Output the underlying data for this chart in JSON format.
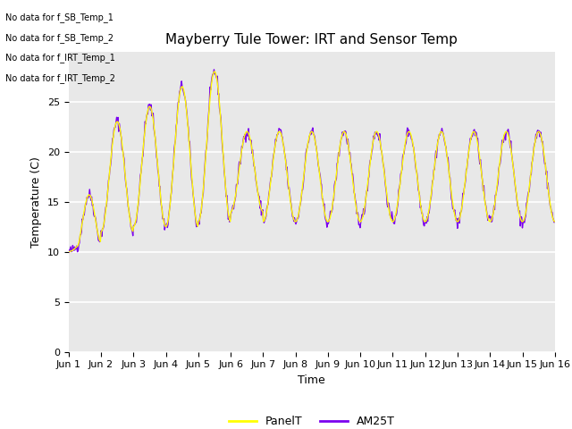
{
  "title": "Mayberry Tule Tower: IRT and Sensor Temp",
  "xlabel": "Time",
  "ylabel": "Temperature (C)",
  "ylim": [
    0,
    30
  ],
  "yticks": [
    0,
    5,
    10,
    15,
    20,
    25
  ],
  "xlim": [
    0,
    15
  ],
  "xtick_labels": [
    "Jun 1",
    "Jun 2",
    "Jun 3",
    "Jun 4",
    "Jun 5",
    "Jun 6",
    "Jun 7",
    "Jun 8",
    "Jun 9",
    "Jun 10",
    "Jun 11",
    "Jun 12",
    "Jun 13",
    "Jun 14",
    "Jun 15",
    "Jun 16"
  ],
  "panelT_color": "yellow",
  "am25T_color": "#7B00EE",
  "background_color": "#e8e8e8",
  "no_data_texts": [
    "No data for f_SB_Temp_1",
    "No data for f_SB_Temp_2",
    "No data for f_IRT_Temp_1",
    "No data for f_IRT_Temp_2"
  ],
  "legend_entries": [
    "PanelT",
    "AM25T"
  ],
  "grid_color": "white",
  "title_fontsize": 11,
  "axis_fontsize": 9,
  "tick_fontsize": 8,
  "no_data_fontsize": 7
}
